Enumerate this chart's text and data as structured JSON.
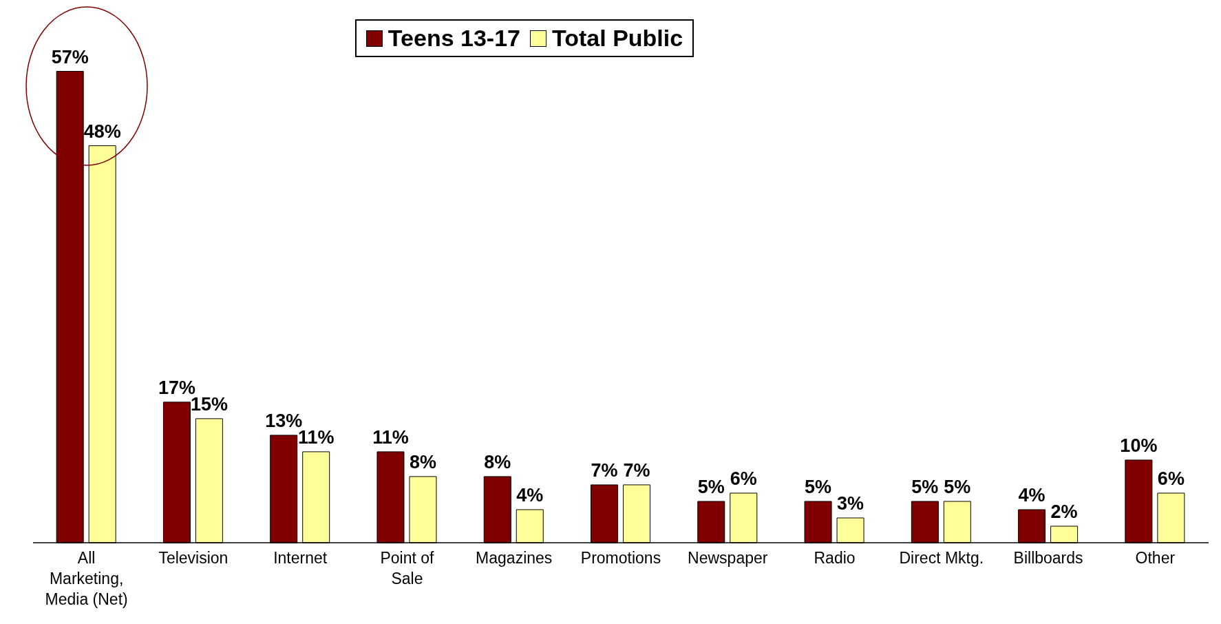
{
  "chart_data": {
    "type": "bar",
    "categories": [
      "All Marketing, Media (Net)",
      "Television",
      "Internet",
      "Point of Sale",
      "Magazines",
      "Promotions",
      "Newspaper",
      "Radio",
      "Direct Mktg.",
      "Billboards",
      "Other"
    ],
    "series": [
      {
        "name": "Teens 13-17",
        "color": "#800000",
        "values": [
          57,
          17,
          13,
          11,
          8,
          7,
          5,
          5,
          5,
          4,
          10
        ],
        "value_labels": [
          "57%",
          "17%",
          "13%",
          "11%",
          "8%",
          "7%",
          "5%",
          "5%",
          "5%",
          "4%",
          "10%"
        ]
      },
      {
        "name": "Total Public",
        "color": "#ffff99",
        "values": [
          48,
          15,
          11,
          8,
          4,
          7,
          6,
          3,
          5,
          2,
          6
        ],
        "value_labels": [
          "48%",
          "15%",
          "11%",
          "8%",
          "4%",
          "7%",
          "6%",
          "3%",
          "5%",
          "2%",
          "6%"
        ]
      }
    ],
    "legend": "top",
    "grid": false
  }
}
